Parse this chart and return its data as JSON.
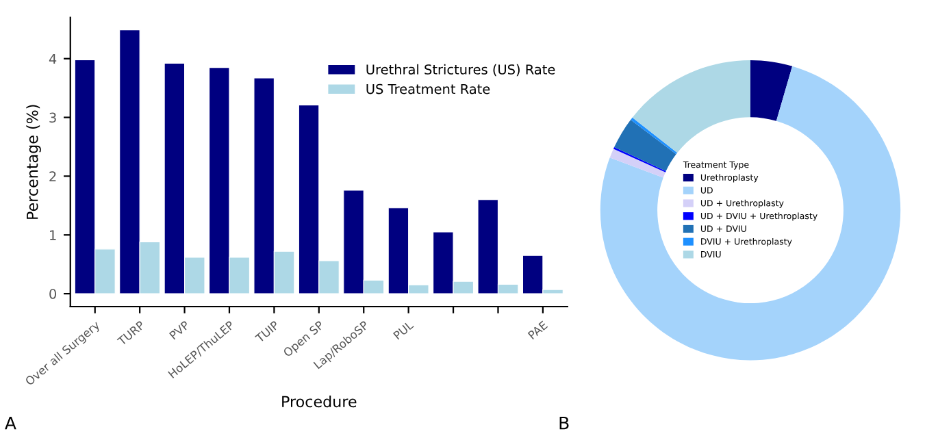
{
  "chart_data": [
    {
      "type": "bar",
      "xlabel": "Procedure",
      "ylabel": "Percentage (%)",
      "annotations": [
        "A"
      ],
      "categories": [
        "Over all Surgery",
        "TURP",
        "PVP",
        "HoLEP/ThuLEP",
        "TUIP",
        "Open SP",
        "Lap/RoboSP",
        "PUL",
        null,
        null,
        "PAE"
      ],
      "series": [
        {
          "name": "Urethral Strictures (US) Rate",
          "color": "#000080",
          "values": [
            3.98,
            4.49,
            3.92,
            3.85,
            3.67,
            3.21,
            1.76,
            1.46,
            1.05,
            1.6,
            0.65
          ]
        },
        {
          "name": "US Treatment Rate",
          "color": "#add8e6",
          "values": [
            0.76,
            0.88,
            0.62,
            0.62,
            0.72,
            0.56,
            0.23,
            0.15,
            0.21,
            0.16,
            0.07
          ]
        }
      ],
      "ylim": [
        -0.22,
        4.7
      ],
      "yticks": [
        0,
        1,
        2,
        3,
        4
      ],
      "legend": "top right",
      "grid": false
    },
    {
      "type": "donut",
      "legend_title": "Treatment Type",
      "annotations": [
        "B"
      ],
      "legend": "center",
      "categories": [
        "Urethroplasty",
        "UD",
        "UD + Urethroplasty",
        "UD + DVIU + Urethroplasty",
        "UD + DVIU",
        "DVIU + Urethroplasty",
        "DVIU"
      ],
      "values": [
        4.5,
        76.2,
        1.0,
        0.2,
        3.4,
        0.3,
        14.4
      ],
      "colors": [
        "#000080",
        "#a4d3fb",
        "#d4d0f8",
        "#0000ff",
        "#2171b5",
        "#1e90ff",
        "#add8e6"
      ]
    }
  ]
}
